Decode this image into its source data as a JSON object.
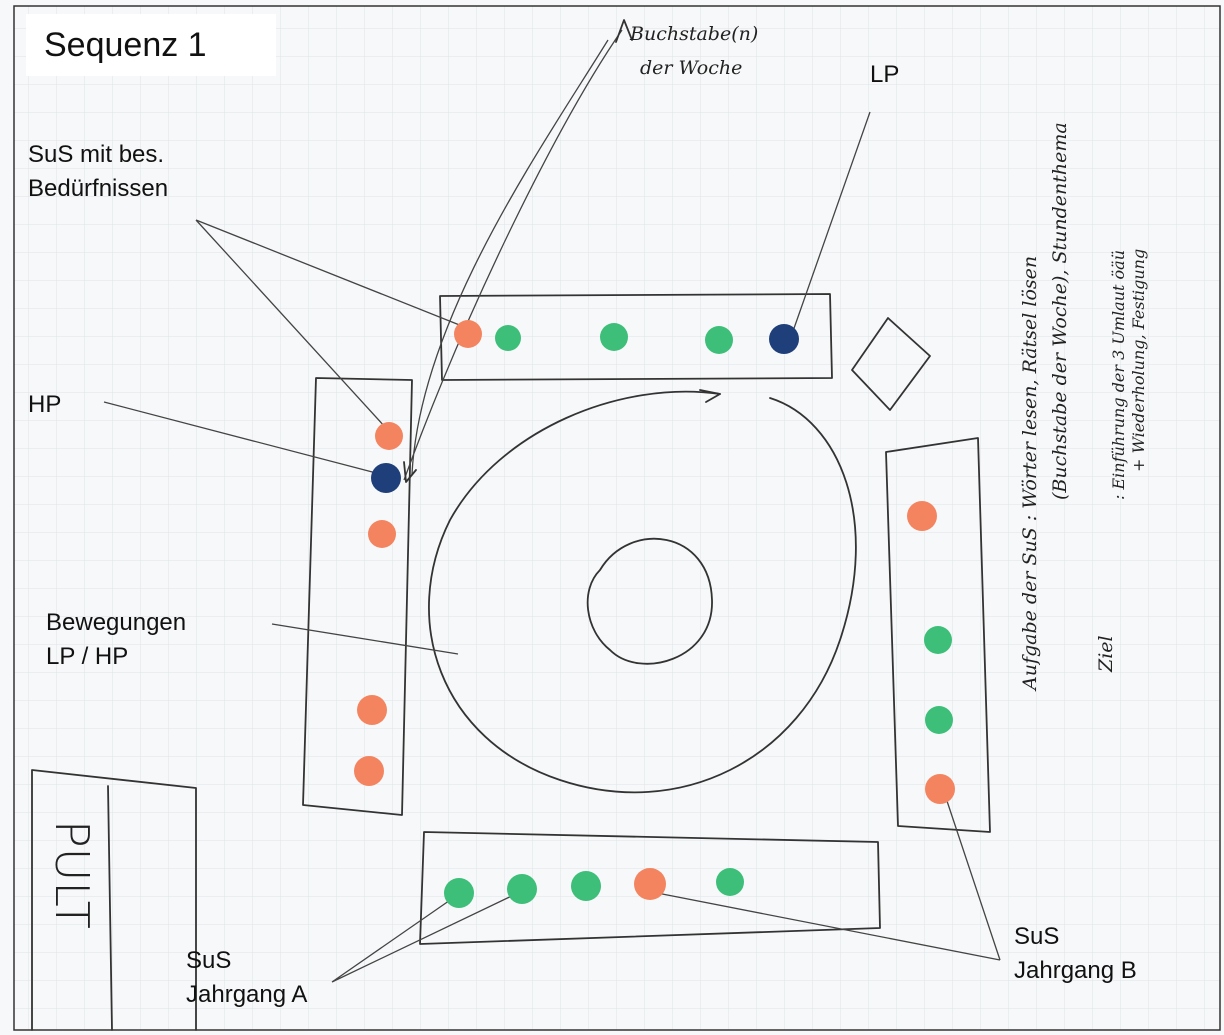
{
  "header": {
    "title": "Sequenz 1"
  },
  "labels": {
    "buchstabe": [
      "Buchstabe(n)",
      "der Woche"
    ],
    "lp": "LP",
    "sus_special": [
      "SuS mit bes.",
      "Bedürfnissen"
    ],
    "hp": "HP",
    "movement": [
      "Bewegungen",
      "LP / HP"
    ],
    "pult": "PULT",
    "jahrgang_a": [
      "SuS",
      "Jahrgang A"
    ],
    "jahrgang_b": [
      "SuS",
      "Jahrgang B"
    ]
  },
  "notes": {
    "task_label": "Aufgabe der SuS",
    "task": [
      ": Wörter lesen, Rätsel lösen",
      "(Buchstabe der Woche), Stundenthema"
    ],
    "goal_label": "Ziel",
    "goal": [
      ": Einführung der 3 Umlaut öäü",
      "+ Wiederholung, Festigung"
    ]
  }
}
